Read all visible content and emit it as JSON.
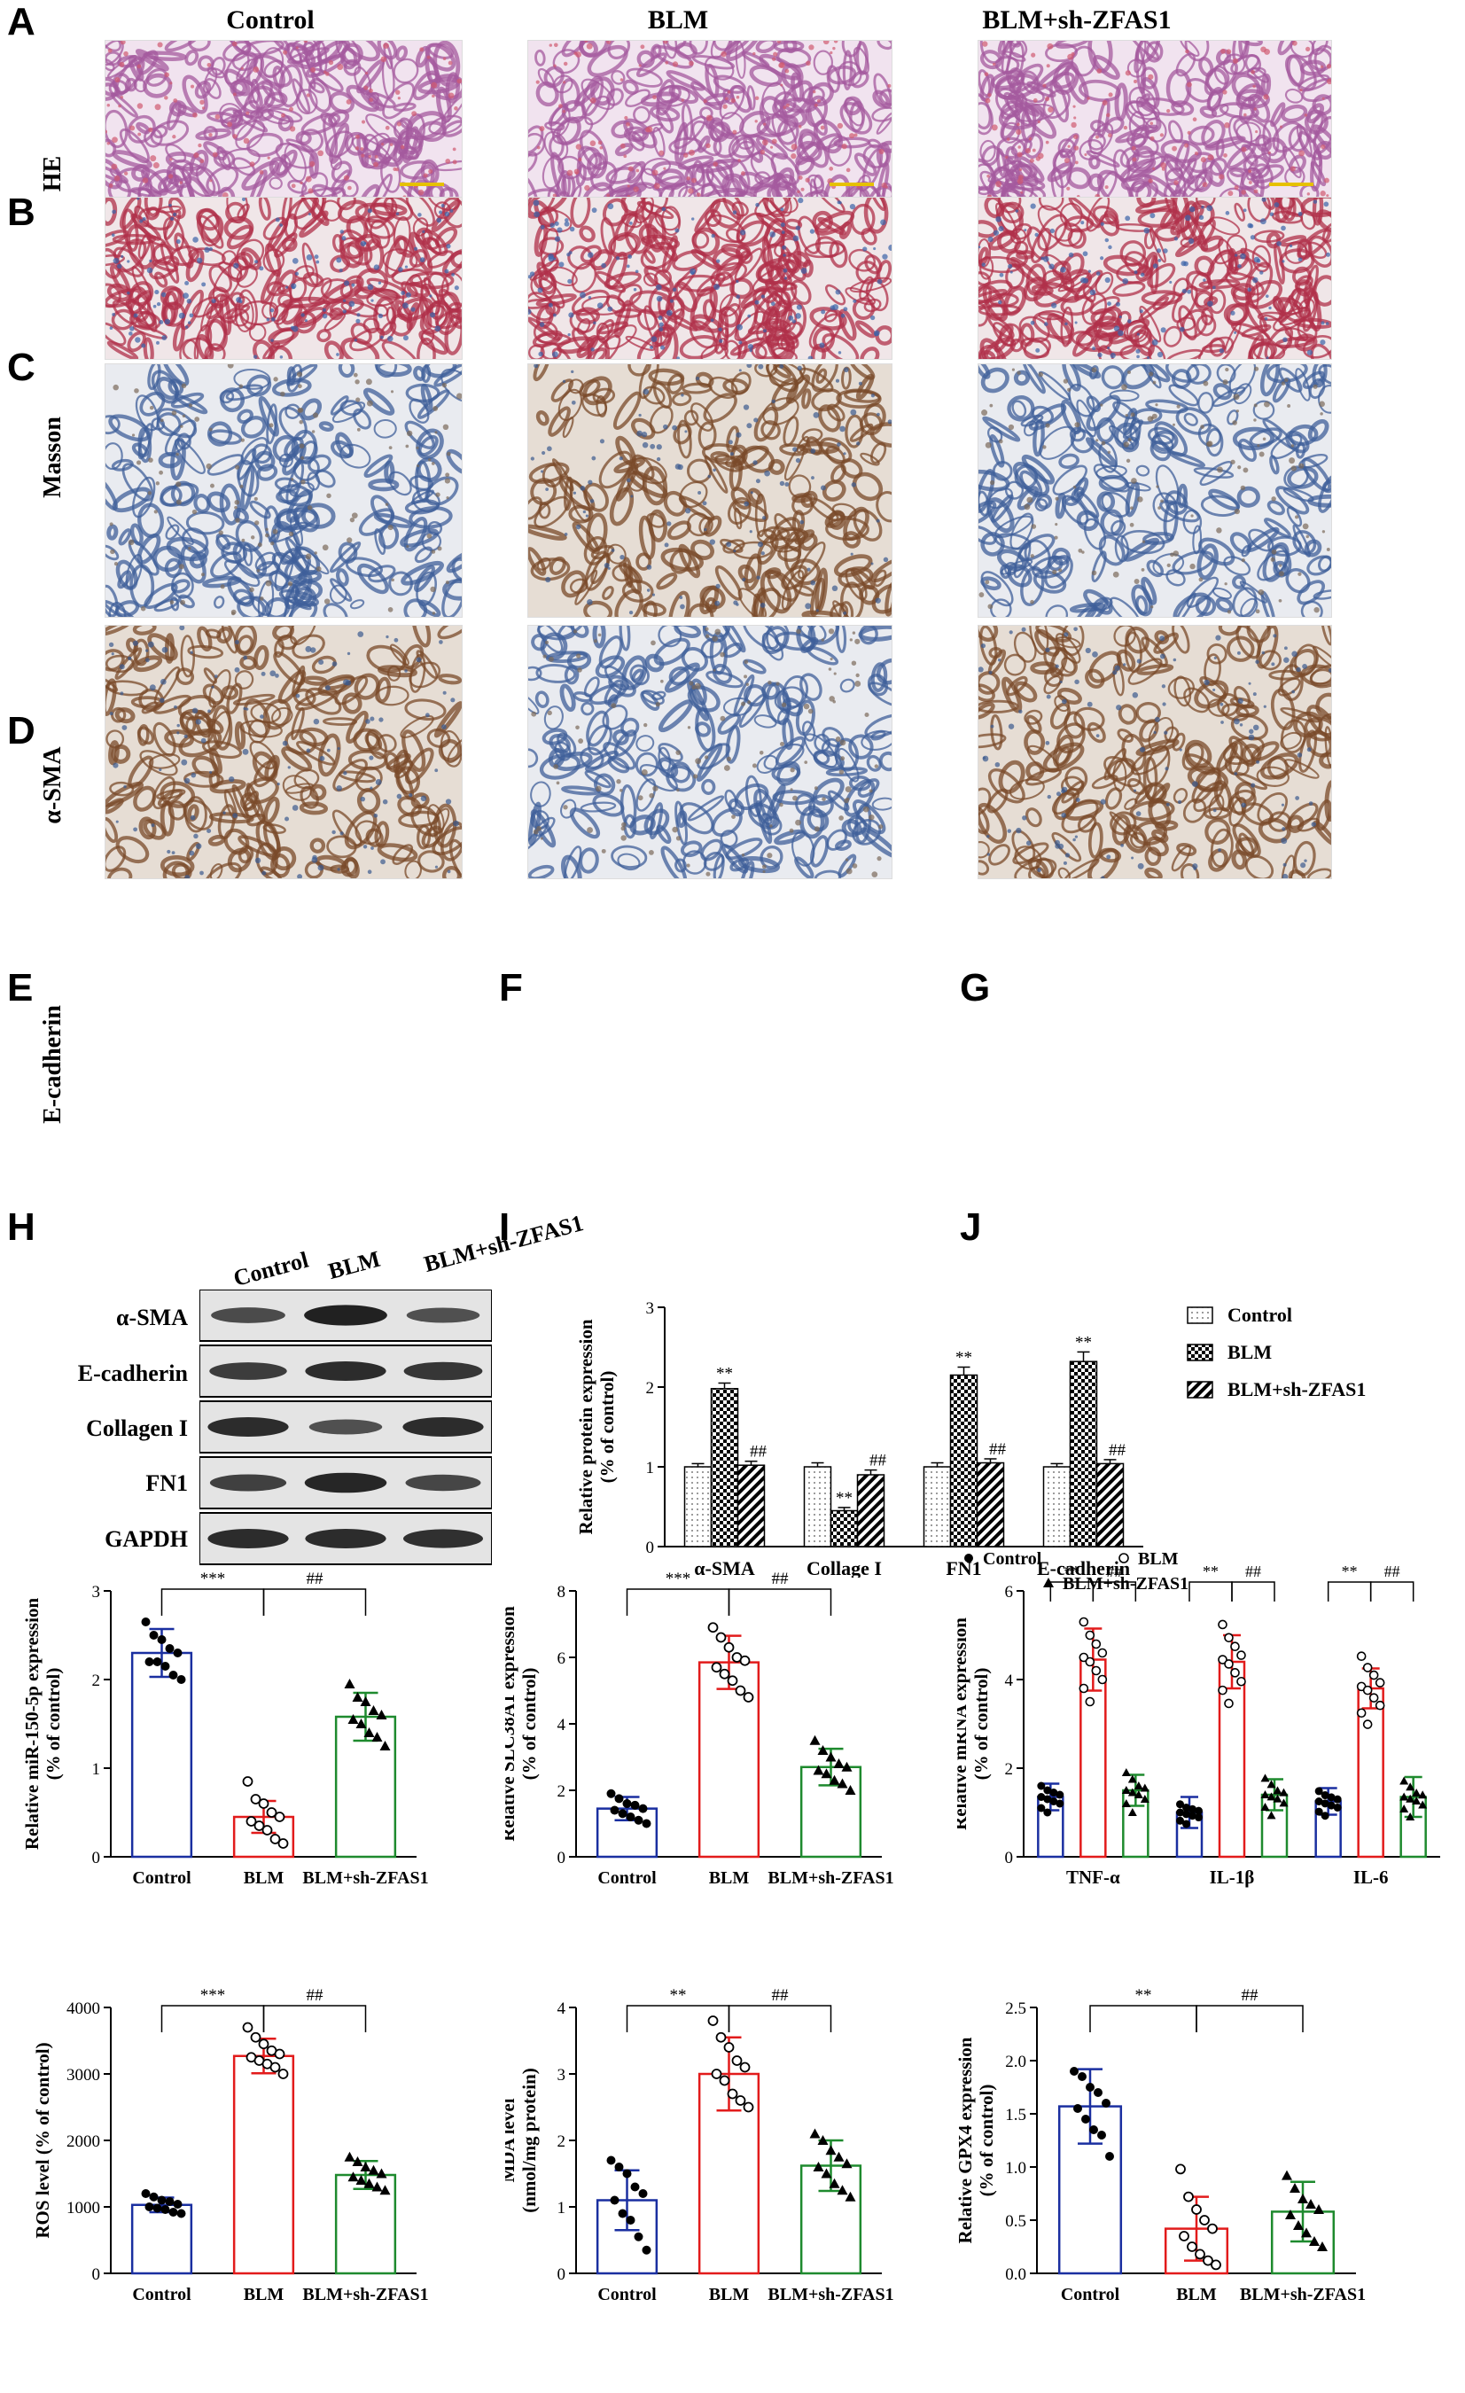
{
  "panel_letters": [
    "A",
    "B",
    "C",
    "D",
    "E",
    "F",
    "G",
    "H",
    "I",
    "J"
  ],
  "columns": [
    "Control",
    "BLM",
    "BLM+sh-ZFAS1"
  ],
  "rows": [
    "HE",
    "Masson",
    "α-SMA",
    "E-cadherin"
  ],
  "stain_colors": {
    "HE": {
      "bg": "#f1e3ef",
      "tissue": "#a45a9e",
      "accent": "#d05a70"
    },
    "Masson": {
      "bg": "#f0e6e8",
      "tissue": "#b0304a",
      "accent": "#3b62a8"
    },
    "IHC_low": {
      "bg": "#e9ebf0",
      "tissue": "#3f5f9a",
      "accent": "#7a6a5a"
    },
    "IHC_high": {
      "bg": "#e6ddd4",
      "tissue": "#7a4a2a",
      "accent": "#3b5a8f"
    }
  },
  "western_blot": {
    "lanes": [
      "Control",
      "BLM",
      "BLM+sh-ZFAS1"
    ],
    "bands": [
      "α-SMA",
      "E-cadherin",
      "Collagen I",
      "FN1",
      "GAPDH"
    ],
    "band_intensity": [
      [
        0.55,
        0.95,
        0.5
      ],
      [
        0.7,
        0.85,
        0.75
      ],
      [
        0.85,
        0.5,
        0.85
      ],
      [
        0.65,
        0.9,
        0.6
      ],
      [
        0.85,
        0.85,
        0.8
      ]
    ]
  },
  "colors": {
    "control": "#1a2fa0",
    "blm": "#e21b1b",
    "sh": "#1e8a2e",
    "black": "#000000"
  },
  "chart_data": [
    {
      "id": "D",
      "type": "bar",
      "categories": [
        "α-SMA",
        "Collage I",
        "FN1",
        "E-cadherin"
      ],
      "series": [
        {
          "name": "Control",
          "values": [
            1.0,
            1.0,
            1.0,
            1.0
          ],
          "err": [
            0.04,
            0.05,
            0.05,
            0.04
          ],
          "marks": [
            "",
            "",
            "",
            ""
          ]
        },
        {
          "name": "BLM",
          "values": [
            1.98,
            0.45,
            2.15,
            2.32
          ],
          "err": [
            0.07,
            0.04,
            0.1,
            0.12
          ],
          "marks": [
            "**",
            "**",
            "**",
            "**"
          ]
        },
        {
          "name": "BLM+sh-ZFAS1",
          "values": [
            1.02,
            0.9,
            1.05,
            1.04
          ],
          "err": [
            0.05,
            0.06,
            0.05,
            0.05
          ],
          "marks": [
            "##",
            "##",
            "##",
            "##"
          ]
        }
      ],
      "ylabel": "Relative protein expression\n(% of control)",
      "ylim": [
        0,
        3
      ],
      "yticks": [
        0,
        1,
        2,
        3
      ]
    },
    {
      "id": "E",
      "type": "bar",
      "categories": [
        "Control",
        "BLM",
        "BLM+sh-ZFAS1"
      ],
      "values": [
        2.3,
        0.45,
        1.58
      ],
      "err": [
        0.27,
        0.18,
        0.27
      ],
      "points": [
        [
          2.65,
          2.5,
          2.45,
          2.35,
          2.3,
          2.2,
          2.2,
          2.15,
          2.05,
          2.0
        ],
        [
          0.85,
          0.65,
          0.6,
          0.5,
          0.45,
          0.4,
          0.35,
          0.3,
          0.2,
          0.15
        ],
        [
          1.95,
          1.8,
          1.75,
          1.65,
          1.6,
          1.55,
          1.5,
          1.4,
          1.35,
          1.25
        ]
      ],
      "ylabel": "Relative miR-150-5p expression\n(% of control)",
      "ylim": [
        0,
        3
      ],
      "yticks": [
        0,
        1,
        2,
        3
      ],
      "sig": [
        {
          "from": 0,
          "to": 1,
          "label": "***"
        },
        {
          "from": 1,
          "to": 2,
          "label": "##"
        }
      ]
    },
    {
      "id": "F",
      "type": "bar",
      "categories": [
        "Control",
        "BLM",
        "BLM+sh-ZFAS1"
      ],
      "values": [
        1.45,
        5.85,
        2.7
      ],
      "err": [
        0.35,
        0.8,
        0.55
      ],
      "points": [
        [
          1.9,
          1.75,
          1.6,
          1.55,
          1.45,
          1.4,
          1.3,
          1.2,
          1.1,
          1.0
        ],
        [
          6.9,
          6.6,
          6.3,
          6.0,
          5.9,
          5.7,
          5.5,
          5.3,
          5.0,
          4.8
        ],
        [
          3.5,
          3.2,
          3.0,
          2.8,
          2.7,
          2.6,
          2.5,
          2.3,
          2.2,
          2.0
        ]
      ],
      "ylabel": "Relative SLC38A1 expression\n(% of control)",
      "ylim": [
        0,
        8
      ],
      "yticks": [
        0,
        2,
        4,
        6,
        8
      ],
      "sig": [
        {
          "from": 0,
          "to": 1,
          "label": "***"
        },
        {
          "from": 1,
          "to": 2,
          "label": "##"
        }
      ]
    },
    {
      "id": "G",
      "type": "bar",
      "categories": [
        "TNF-α",
        "IL-1β",
        "IL-6"
      ],
      "series": [
        {
          "name": "Control",
          "values": [
            1.35,
            1.0,
            1.25
          ],
          "err": [
            0.3,
            0.35,
            0.3
          ],
          "points": [
            1.6,
            1.5,
            1.45,
            1.4,
            1.35,
            1.3,
            1.25,
            1.2,
            1.1,
            1.0
          ]
        },
        {
          "name": "BLM",
          "values": [
            4.45,
            4.4,
            3.8
          ],
          "err": [
            0.7,
            0.6,
            0.45
          ],
          "points": [
            5.3,
            5.0,
            4.8,
            4.6,
            4.5,
            4.4,
            4.2,
            4.0,
            3.8,
            3.5
          ]
        },
        {
          "name": "BLM+sh-ZFAS1",
          "values": [
            1.5,
            1.4,
            1.35
          ],
          "err": [
            0.35,
            0.35,
            0.45
          ],
          "points": [
            1.9,
            1.75,
            1.6,
            1.55,
            1.5,
            1.45,
            1.4,
            1.3,
            1.2,
            1.0
          ]
        }
      ],
      "ylabel": "Relative mRNA expression\n(% of control)",
      "ylim": [
        0,
        6
      ],
      "yticks": [
        0,
        2,
        4,
        6
      ],
      "sig_left": "**",
      "sig_right": "##"
    },
    {
      "id": "H",
      "type": "bar",
      "categories": [
        "Control",
        "BLM",
        "BLM+sh-ZFAS1"
      ],
      "values": [
        1030,
        3270,
        1480
      ],
      "err": [
        110,
        260,
        210
      ],
      "points": [
        [
          1200,
          1150,
          1100,
          1080,
          1040,
          1000,
          980,
          960,
          920,
          900
        ],
        [
          3700,
          3550,
          3450,
          3350,
          3300,
          3250,
          3200,
          3150,
          3100,
          3000
        ],
        [
          1750,
          1680,
          1600,
          1550,
          1500,
          1450,
          1400,
          1350,
          1300,
          1250
        ]
      ],
      "ylabel": "ROS level (% of control)",
      "ylim": [
        0,
        4000
      ],
      "yticks": [
        0,
        1000,
        2000,
        3000,
        4000
      ],
      "sig": [
        {
          "from": 0,
          "to": 1,
          "label": "***"
        },
        {
          "from": 1,
          "to": 2,
          "label": "##"
        }
      ]
    },
    {
      "id": "I",
      "type": "bar",
      "categories": [
        "Control",
        "BLM",
        "BLM+sh-ZFAS1"
      ],
      "values": [
        1.1,
        3.0,
        1.62
      ],
      "err": [
        0.45,
        0.55,
        0.38
      ],
      "points": [
        [
          1.7,
          1.6,
          1.5,
          1.3,
          1.2,
          1.1,
          0.9,
          0.8,
          0.55,
          0.35
        ],
        [
          3.8,
          3.55,
          3.4,
          3.2,
          3.1,
          3.0,
          2.9,
          2.7,
          2.6,
          2.5
        ],
        [
          2.1,
          2.0,
          1.85,
          1.75,
          1.65,
          1.6,
          1.5,
          1.35,
          1.25,
          1.15
        ]
      ],
      "ylabel": "MDA level\n(nmol/mg protein)",
      "ylim": [
        0,
        4
      ],
      "yticks": [
        0,
        1,
        2,
        3,
        4
      ],
      "sig": [
        {
          "from": 0,
          "to": 1,
          "label": "**"
        },
        {
          "from": 1,
          "to": 2,
          "label": "##"
        }
      ]
    },
    {
      "id": "J",
      "type": "bar",
      "categories": [
        "Control",
        "BLM",
        "BLM+sh-ZFAS1"
      ],
      "values": [
        1.57,
        0.42,
        0.58
      ],
      "err": [
        0.35,
        0.3,
        0.28
      ],
      "points": [
        [
          1.9,
          1.85,
          1.75,
          1.7,
          1.6,
          1.55,
          1.45,
          1.35,
          1.3,
          1.1
        ],
        [
          0.98,
          0.72,
          0.6,
          0.5,
          0.42,
          0.35,
          0.25,
          0.18,
          0.12,
          0.08
        ],
        [
          0.92,
          0.8,
          0.7,
          0.65,
          0.6,
          0.55,
          0.45,
          0.38,
          0.3,
          0.25
        ]
      ],
      "ylabel": "Relative GPX4 expression\n(% of control)",
      "ylim": [
        0,
        2.5
      ],
      "yticks": [
        0.0,
        0.5,
        1.0,
        1.5,
        2.0,
        2.5
      ],
      "sig": [
        {
          "from": 0,
          "to": 1,
          "label": "**"
        },
        {
          "from": 1,
          "to": 2,
          "label": "##"
        }
      ]
    }
  ],
  "legend_G": [
    "Control",
    "BLM",
    "BLM+sh-ZFAS1"
  ],
  "legend_D": [
    "Control",
    "BLM",
    "BLM+sh-ZFAS1"
  ]
}
